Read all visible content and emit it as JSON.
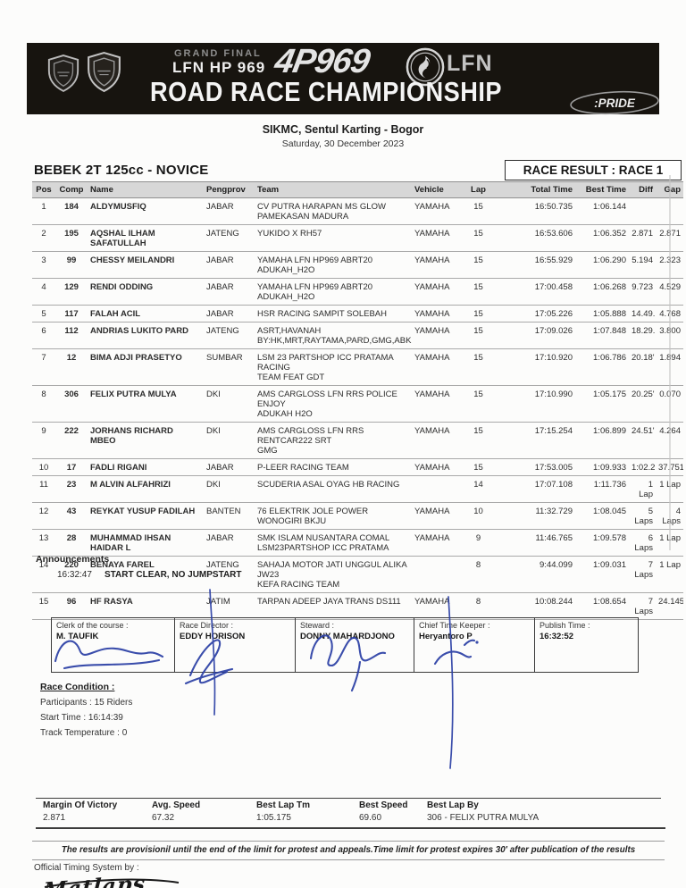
{
  "banner": {
    "grand_final": "GRAND FINAL",
    "lfn_hp": "LFN HP 969",
    "logo_969": "4P969",
    "lfn_right": "LFN",
    "championship": "ROAD RACE CHAMPIONSHIP",
    "pride": ":PRIDE",
    "bg_color": "#17140f"
  },
  "event": {
    "venue": "SIKMC, Sentul Karting - Bogor",
    "date": "Saturday, 30 December 2023"
  },
  "result": {
    "class_title": "BEBEK 2T 125cc - NOVICE",
    "race_label": "RACE RESULT : RACE 1",
    "columns": [
      "Pos",
      "Comp",
      "Name",
      "Pengprov",
      "Team",
      "Vehicle",
      "Lap",
      "Total Time",
      "Best Time",
      "Diff",
      "Gap"
    ],
    "header": [
      {
        "pos": "Pos",
        "comp": "Comp",
        "name": "Name",
        "pengprov": "Pengprov",
        "team": "Team",
        "vehicle": "Vehicle",
        "lap": "Lap",
        "total": "Total Time",
        "best": "Best Time",
        "diff": "Diff",
        "gap": "Gap"
      }
    ],
    "rows": [
      {
        "pos": "1",
        "comp": "184",
        "name": "ALDYMUSFIQ",
        "pengprov": "JABAR",
        "team": "CV PUTRA HARAPAN MS GLOW\nPAMEKASAN MADURA",
        "vehicle": "YAMAHA",
        "lap": "15",
        "total": "16:50.735",
        "best": "1:06.144",
        "diff": "",
        "gap": ""
      },
      {
        "pos": "2",
        "comp": "195",
        "name": "AQSHAL ILHAM SAFATULLAH",
        "pengprov": "JATENG",
        "team": "YUKIDO X RH57",
        "vehicle": "YAMAHA",
        "lap": "15",
        "total": "16:53.606",
        "best": "1:06.352",
        "diff": "2.871",
        "gap": "2.871"
      },
      {
        "pos": "3",
        "comp": "99",
        "name": "CHESSY MEILANDRI",
        "pengprov": "JABAR",
        "team": "YAMAHA LFN HP969 ABRT20\nADUKAH_H2O",
        "vehicle": "YAMAHA",
        "lap": "15",
        "total": "16:55.929",
        "best": "1:06.290",
        "diff": "5.194",
        "gap": "2.323"
      },
      {
        "pos": "4",
        "comp": "129",
        "name": "RENDI ODDING",
        "pengprov": "JABAR",
        "team": "YAMAHA LFN HP969 ABRT20\nADUKAH_H2O",
        "vehicle": "YAMAHA",
        "lap": "15",
        "total": "17:00.458",
        "best": "1:06.268",
        "diff": "9.723",
        "gap": "4.529"
      },
      {
        "pos": "5",
        "comp": "117",
        "name": "FALAH ACIL",
        "pengprov": "JABAR",
        "team": "HSR RACING SAMPIT SOLEBAH",
        "vehicle": "YAMAHA",
        "lap": "15",
        "total": "17:05.226",
        "best": "1:05.888",
        "diff": "14.49.",
        "gap": "4.768"
      },
      {
        "pos": "6",
        "comp": "112",
        "name": "ANDRIAS LUKITO PARD",
        "pengprov": "JATENG",
        "team": "ASRT,HAVANAH\nBY:HK,MRT,RAYTAMA,PARD,GMG,ABK",
        "vehicle": "YAMAHA",
        "lap": "15",
        "total": "17:09.026",
        "best": "1:07.848",
        "diff": "18.29.",
        "gap": "3.800"
      },
      {
        "pos": "7",
        "comp": "12",
        "name": "BIMA ADJI PRASETYO",
        "pengprov": "SUMBAR",
        "team": "LSM 23 PARTSHOP ICC PRATAMA RACING\nTEAM FEAT GDT",
        "vehicle": "YAMAHA",
        "lap": "15",
        "total": "17:10.920",
        "best": "1:06.786",
        "diff": "20.18'",
        "gap": "1.894"
      },
      {
        "pos": "8",
        "comp": "306",
        "name": "FELIX PUTRA MULYA",
        "pengprov": "DKI",
        "team": "AMS CARGLOSS LFN RRS POLICE ENJOY\nADUKAH H2O",
        "vehicle": "YAMAHA",
        "lap": "15",
        "total": "17:10.990",
        "best": "1:05.175",
        "diff": "20.25'",
        "gap": "0.070"
      },
      {
        "pos": "9",
        "comp": "222",
        "name": "JORHANS RICHARD MBEO",
        "pengprov": "DKI",
        "team": "AMS CARGLOSS LFN RRS RENTCAR222 SRT\nGMG",
        "vehicle": "YAMAHA",
        "lap": "15",
        "total": "17:15.254",
        "best": "1:06.899",
        "diff": "24.51'",
        "gap": "4.264"
      },
      {
        "pos": "10",
        "comp": "17",
        "name": "FADLI RIGANI",
        "pengprov": "JABAR",
        "team": "P-LEER RACING TEAM",
        "vehicle": "YAMAHA",
        "lap": "15",
        "total": "17:53.005",
        "best": "1:09.933",
        "diff": "1:02.2",
        "gap": "37.751"
      },
      {
        "pos": "11",
        "comp": "23",
        "name": "M ALVIN ALFAHRIZI",
        "pengprov": "DKI",
        "team": "SCUDERIA ASAL OYAG HB RACING",
        "vehicle": "",
        "lap": "14",
        "total": "17:07.108",
        "best": "1:11.736",
        "diff": "1\nLap",
        "gap": "1 Lap"
      },
      {
        "pos": "12",
        "comp": "43",
        "name": "REYKAT YUSUP FADILAH",
        "pengprov": "BANTEN",
        "team": "76 ELEKTRIK JOLE POWER WONOGIRI BKJU",
        "vehicle": "YAMAHA",
        "lap": "10",
        "total": "11:32.729",
        "best": "1:08.045",
        "diff": "5\nLaps",
        "gap": "4\nLaps"
      },
      {
        "pos": "13",
        "comp": "28",
        "name": "MUHAMMAD IHSAN HAIDAR L",
        "pengprov": "JABAR",
        "team": "SMK ISLAM NUSANTARA COMAL\nLSM23PARTSHOP ICC PRATAMA",
        "vehicle": "YAMAHA",
        "lap": "9",
        "total": "11:46.765",
        "best": "1:09.578",
        "diff": "6\nLaps",
        "gap": "1 Lap"
      },
      {
        "pos": "14",
        "comp": "220",
        "name": "BENAYA FAREL",
        "pengprov": "JATENG",
        "team": "SAHAJA MOTOR JATI UNGGUL ALIKA JW23\nKEFA RACING TEAM",
        "vehicle": "",
        "lap": "8",
        "total": "9:44.099",
        "best": "1:09.031",
        "diff": "7\nLaps",
        "gap": "1 Lap"
      },
      {
        "pos": "15",
        "comp": "96",
        "name": "HF RASYA",
        "pengprov": "JATIM",
        "team": "TARPAN ADEEP JAYA TRANS DS111",
        "vehicle": "YAMAHA",
        "lap": "8",
        "total": "10:08.244",
        "best": "1:08.654",
        "diff": "7\nLaps",
        "gap": "24.145"
      }
    ]
  },
  "announcements": {
    "title": "Announcements",
    "items": [
      {
        "time": "16:32:47",
        "text": "START CLEAR, NO JUMPSTART"
      }
    ]
  },
  "officials": [
    {
      "role": "Clerk of the course :",
      "name": "M. TAUFIK"
    },
    {
      "role": "Race Director :",
      "name": "EDDY HORISON"
    },
    {
      "role": "Steward :",
      "name": "DONNY MAHARDJONO"
    },
    {
      "role": "Chief Time Keeper :",
      "name": "Heryantoro P"
    },
    {
      "role": "Publish Time :",
      "name": "16:32:52"
    }
  ],
  "race_condition": {
    "title": "Race Condition :",
    "participants": "Participants : 15 Riders",
    "start_time": "Start Time : 16:14:39",
    "track_temperature": "Track Temperature : 0"
  },
  "stats": {
    "items": [
      {
        "label": "Margin Of Victory",
        "value": "2.871"
      },
      {
        "label": "Avg. Speed",
        "value": "67.32"
      },
      {
        "label": "Best Lap Tm",
        "value": "1:05.175"
      },
      {
        "label": "Best Speed",
        "value": "69.60"
      },
      {
        "label": "Best Lap By",
        "value": "306 - FELIX PUTRA MULYA"
      }
    ]
  },
  "footer": {
    "provisional_note": "The results are provisionil until the end of the limit for protest and appeals.Time limit for protest expires 30' after publication of the results",
    "timing_label": "Official Timing System by :",
    "timing_logo": "Matlaps"
  },
  "colors": {
    "signature_ink": "#2a3fa5",
    "table_header_bg": "#d7d7d7",
    "banner_bg": "#17140f"
  }
}
